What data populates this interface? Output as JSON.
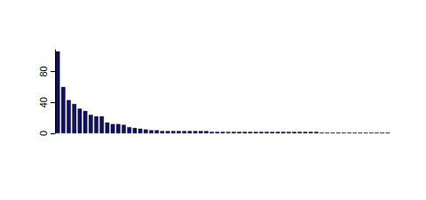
{
  "chart_data": {
    "type": "bar",
    "categories": [
      null,
      null,
      null,
      null,
      null,
      null,
      null,
      null,
      null,
      null,
      null,
      null,
      null,
      null,
      null,
      null,
      null,
      null,
      null,
      null,
      null,
      null,
      null,
      null,
      null,
      null,
      null,
      null,
      null,
      null,
      null,
      null,
      null,
      null,
      null,
      null,
      null,
      null,
      null,
      null,
      null,
      null,
      null,
      null,
      null,
      null,
      null,
      null,
      null,
      null,
      null,
      null,
      null,
      null,
      null,
      null,
      null,
      null,
      null,
      null,
      null
    ],
    "values": [
      106,
      60,
      43,
      38,
      32,
      29,
      24,
      22,
      22,
      14,
      12,
      12,
      11,
      8,
      7,
      6,
      5,
      4,
      4,
      3,
      3,
      3,
      3,
      3,
      3,
      3,
      3,
      3,
      2,
      2,
      2,
      2,
      2,
      2,
      2,
      2,
      2,
      2,
      2,
      2,
      2,
      2,
      2,
      2,
      2,
      2,
      2,
      2,
      1,
      1,
      1,
      1,
      1,
      1,
      1,
      1,
      1,
      1,
      1,
      1,
      1
    ],
    "color": "#12125a",
    "ylim": [
      0,
      108
    ],
    "yticks": [
      0,
      40,
      80
    ],
    "grid": false,
    "tick_labels": "y"
  }
}
